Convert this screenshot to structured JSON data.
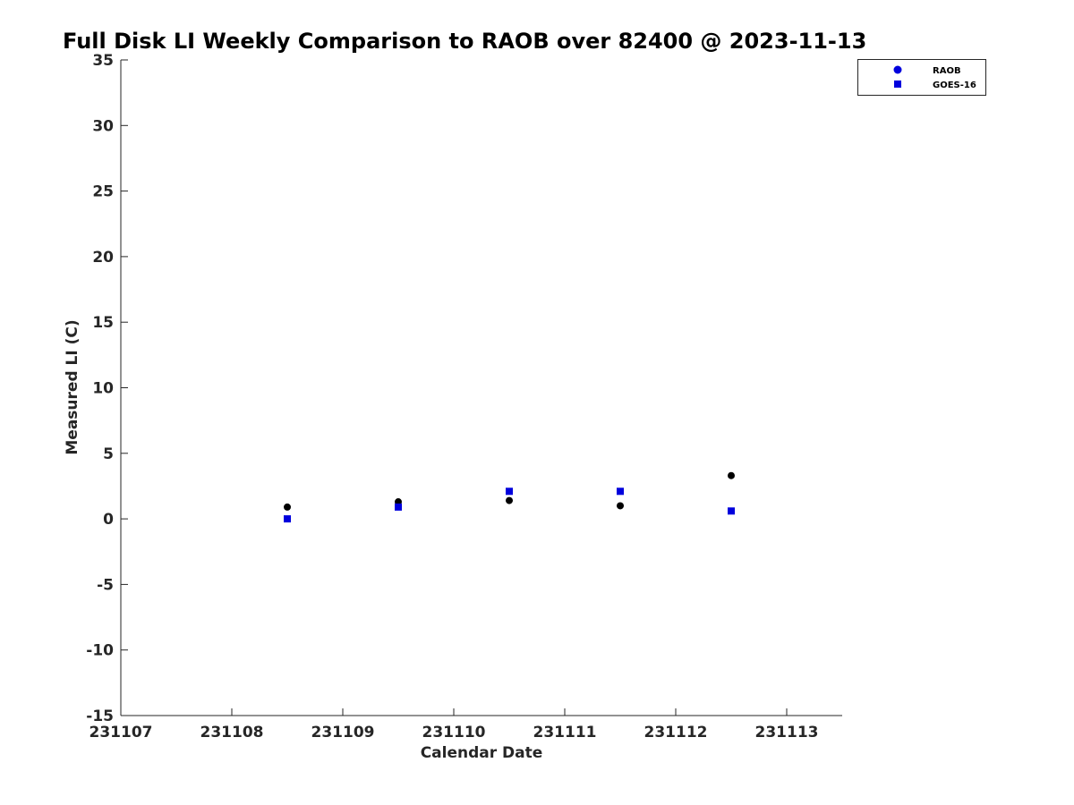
{
  "chart_data": {
    "type": "scatter",
    "title": "Full Disk LI Weekly Comparison to RAOB over 82400 @ 2023-11-13",
    "xlabel": "Calendar Date",
    "ylabel": "Measured LI (C)",
    "xlim": [
      0,
      6.5
    ],
    "ylim": [
      -15,
      35
    ],
    "x_ticks": [
      {
        "pos": 0,
        "label": "231107"
      },
      {
        "pos": 1,
        "label": "231108"
      },
      {
        "pos": 2,
        "label": "231109"
      },
      {
        "pos": 3,
        "label": "231110"
      },
      {
        "pos": 4,
        "label": "231111"
      },
      {
        "pos": 5,
        "label": "231112"
      },
      {
        "pos": 6,
        "label": "231113"
      }
    ],
    "y_ticks": [
      35,
      30,
      25,
      20,
      15,
      10,
      5,
      0,
      -5,
      -10,
      -15
    ],
    "grid": false,
    "legend_position": "top-right",
    "series": [
      {
        "name": "RAOB",
        "marker": "circle",
        "color": "#000000",
        "legend_color": "#0000dd",
        "x": [
          1.5,
          2.5,
          3.5,
          4.5,
          5.5
        ],
        "y": [
          0.9,
          1.3,
          1.4,
          1.0,
          3.3
        ]
      },
      {
        "name": "GOES-16",
        "marker": "square",
        "color": "#0000dd",
        "legend_color": "#0000dd",
        "x": [
          1.5,
          2.5,
          3.5,
          4.5,
          5.5
        ],
        "y": [
          0.0,
          0.9,
          2.1,
          2.1,
          0.6
        ]
      }
    ]
  }
}
